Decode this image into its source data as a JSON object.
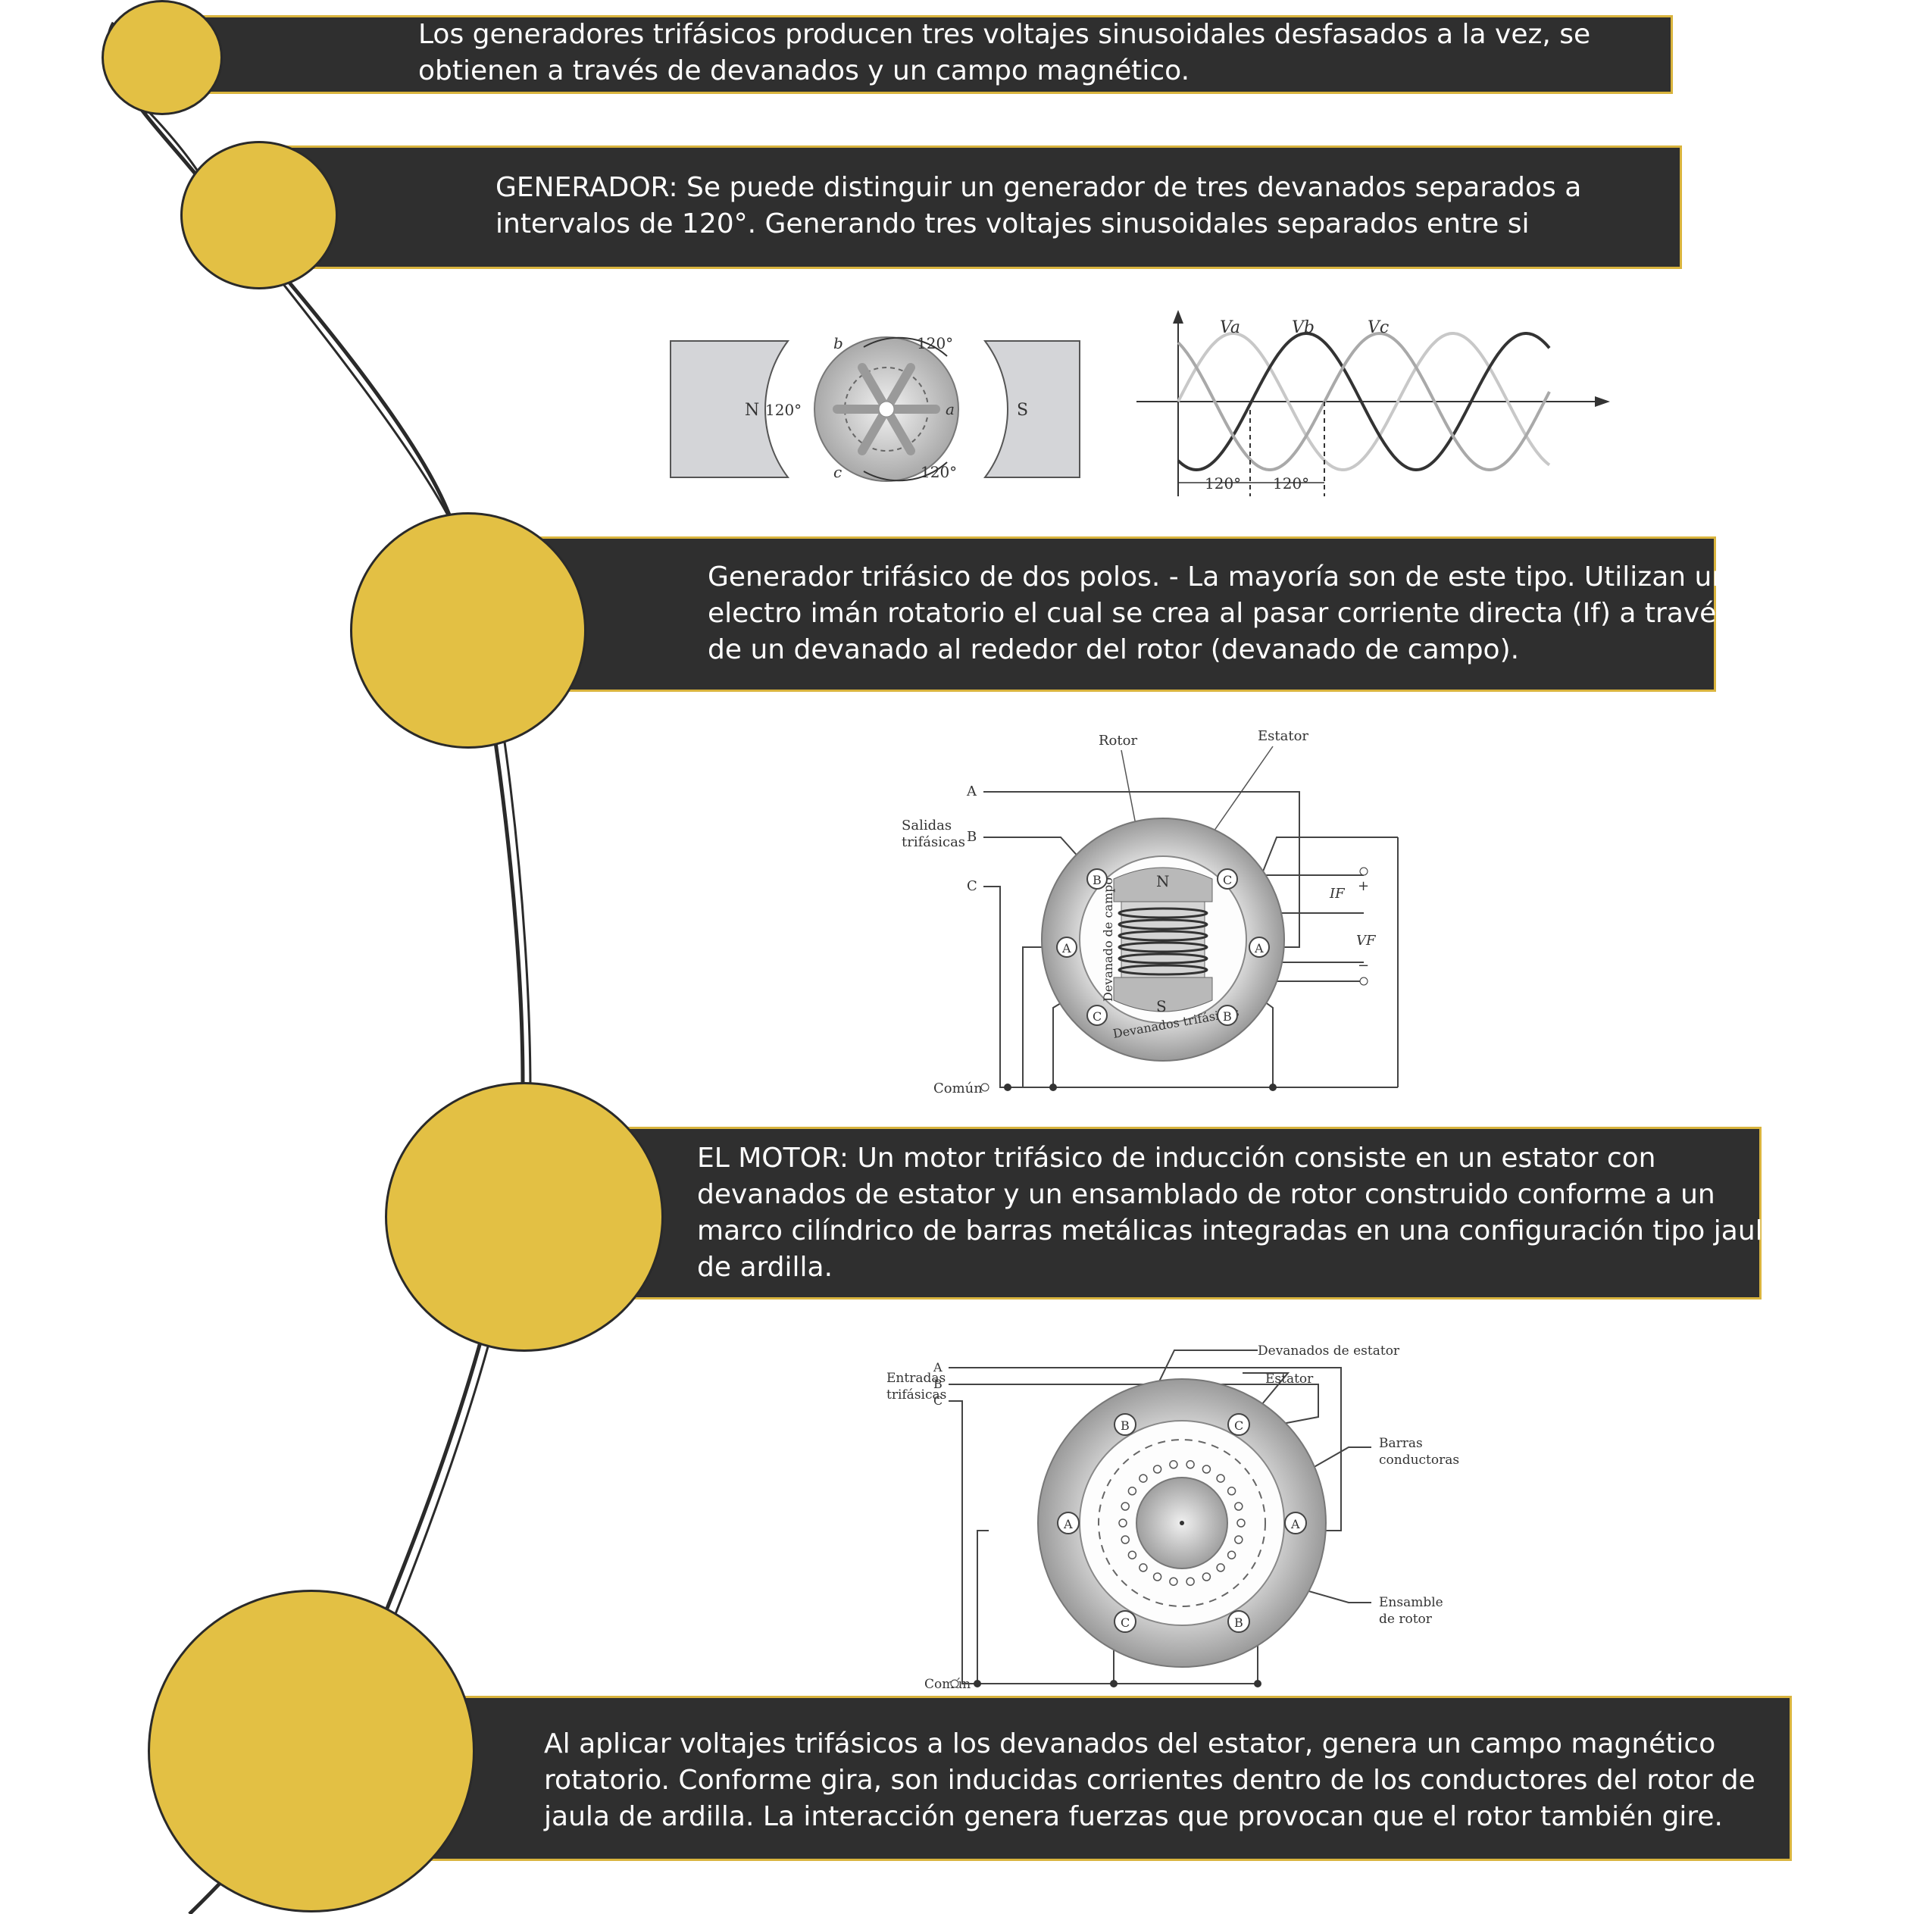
{
  "sections": [
    {
      "lines": [
        "Los generadores trifásicos producen tres voltajes sinusoidales desfasados a la vez, se",
        "obtienen a través de devanados y un campo magnético."
      ]
    },
    {
      "lines": [
        "GENERADOR:  Se puede distinguir un generador de tres devanados separados a",
        "intervalos de 120°. Generando tres voltajes sinusoidales separados entre si"
      ]
    },
    {
      "lines": [
        "Generador trifásico de dos polos. - La mayoría son de este tipo. Utilizan un",
        "electro imán rotatorio el cual se crea al pasar corriente directa (If) a través",
        "de un devanado al rededor del rotor (devanado de campo)."
      ]
    },
    {
      "lines": [
        "EL MOTOR:  Un motor trifásico de inducción consiste en un estator con",
        "devanados de estator y un ensamblado de rotor construido conforme a un",
        "marco cilíndrico de barras metálicas integradas en una configuración tipo jaula",
        "de ardilla."
      ]
    },
    {
      "lines": [
        "Al aplicar voltajes trifásicos a los devanados del estator, genera un campo magnético",
        "rotatorio. Conforme gira, son inducidas corrientes dentro de los conductores del rotor de",
        "jaula de ardilla. La interacción genera fuerzas que provocan que el rotor también gire."
      ]
    }
  ],
  "fig1": {
    "pole_n": "N",
    "pole_s": "S",
    "angle_top": "120°",
    "angle_left": "120°",
    "angle_bottom": "120°",
    "coil_a": "a",
    "coil_b": "b",
    "coil_c": "c"
  },
  "fig2": {
    "label_va": "Va",
    "label_vb": "Vb",
    "label_vc": "Vc",
    "dim_1": "120°",
    "dim_2": "120°"
  },
  "fig3": {
    "rotor": "Rotor",
    "estator": "Estator",
    "salidas_1": "Salidas",
    "salidas_2": "trifásicas",
    "out_a": "A",
    "out_b": "B",
    "out_c": "C",
    "pole_n": "N",
    "pole_s": "S",
    "if_label": "IF",
    "vf_label": "VF",
    "plus": "+",
    "minus": "−",
    "devanado_campo": "Devanado de campo",
    "devanados_trifasicos": "Devanados trifásicos",
    "comun": "Común",
    "term_b": "B",
    "term_c": "C",
    "term_a": "A"
  },
  "fig4": {
    "devanados_estator": "Devanados de estator",
    "estator": "Estator",
    "entradas_1": "Entradas",
    "entradas_2": "trifásicas",
    "in_a": "A",
    "in_b": "B",
    "in_c": "C",
    "barras_1": "Barras",
    "barras_2": "conductoras",
    "ensamble_1": "Ensamble",
    "ensamble_2": "de rotor",
    "comun": "Común",
    "term_a": "A",
    "term_b": "B",
    "term_c": "C"
  },
  "colors": {
    "band": "#2f2f2f",
    "band_border": "#d9b43d",
    "circle": "#e3c044",
    "text": "#ffffff"
  }
}
